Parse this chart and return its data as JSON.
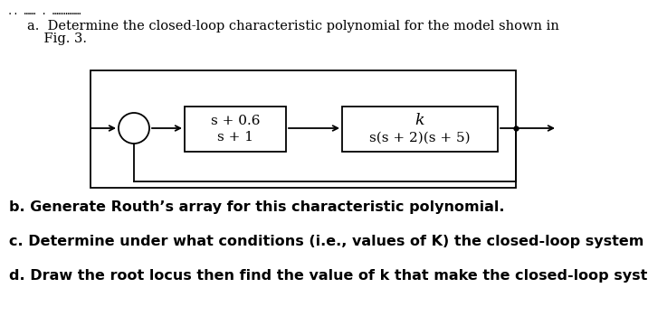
{
  "background_color": "#ffffff",
  "header_dots": ".. …… . …………",
  "part_a_line1": "a.  Determine the closed-loop characteristic polynomial for the model shown in",
  "part_a_line2": "    Fig. 3.",
  "block1_num": "s + 0.6",
  "block1_den": "s + 1",
  "block2_num": "k",
  "block2_den": "s(s + 2)(s + 5)",
  "part_b": "b. Generate Routh’s array for this characteristic polynomial.",
  "part_c": "c. Determine under what conditions (i.e., values of K) the closed-loop system is stable.",
  "part_d": "d. Draw the root locus then find the value of k that make the closed-loop system is stable.",
  "text_color": "#000000",
  "box_color": "#000000",
  "line_color": "#000000",
  "font_size_main": 10.5,
  "font_size_bold": 11.5,
  "font_size_block": 11.0,
  "fig_width": 7.16,
  "fig_height": 3.6,
  "dpi": 100
}
